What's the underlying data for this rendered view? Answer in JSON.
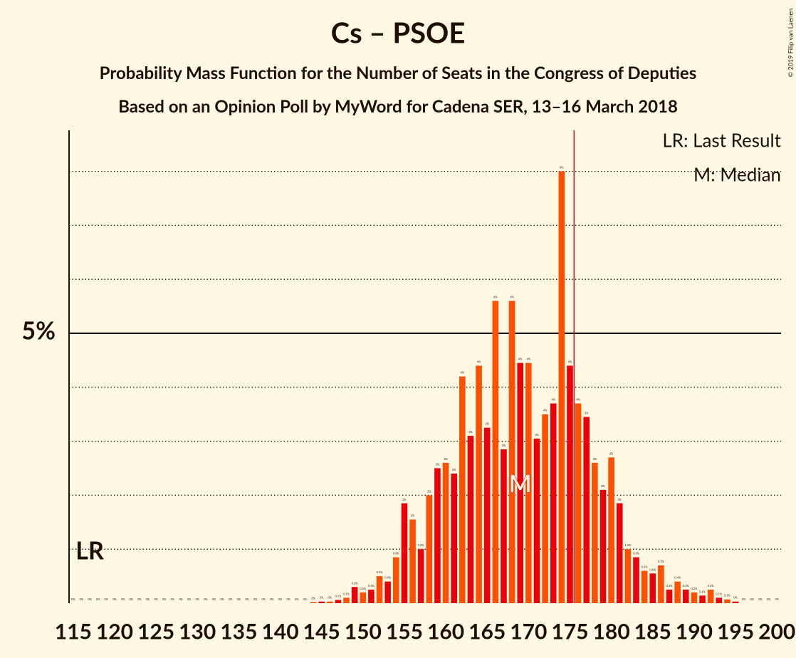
{
  "chart_data": {
    "type": "bar",
    "title": "Cs – PSOE",
    "subtitle": "Probability Mass Function for the Number of Seats in the Congress of Deputies",
    "subtitle2": "Based on an Opinion Poll by MyWord for Cadena SER, 13–16 March 2018",
    "copyright": "© 2019 Filip van Laenen",
    "legend": [
      "LR: Last Result",
      "M: Median"
    ],
    "x": [
      115,
      116,
      117,
      118,
      119,
      120,
      121,
      122,
      123,
      124,
      125,
      126,
      127,
      128,
      129,
      130,
      131,
      132,
      133,
      134,
      135,
      136,
      137,
      138,
      139,
      140,
      141,
      142,
      143,
      144,
      145,
      146,
      147,
      148,
      149,
      150,
      151,
      152,
      153,
      154,
      155,
      156,
      157,
      158,
      159,
      160,
      161,
      162,
      163,
      164,
      165,
      166,
      167,
      168,
      169,
      170,
      171,
      172,
      173,
      174,
      175,
      176,
      177,
      178,
      179,
      180,
      181,
      182,
      183,
      184,
      185,
      186,
      187,
      188,
      189,
      190,
      191,
      192,
      193,
      194,
      195,
      196,
      197,
      198,
      199,
      200
    ],
    "values": [
      0,
      0,
      0,
      0,
      0,
      0,
      0,
      0,
      0,
      0,
      0,
      0,
      0,
      0,
      0,
      0,
      0,
      0,
      0,
      0,
      0,
      0,
      0,
      0,
      0,
      0,
      0,
      0,
      0,
      0.02,
      0.03,
      0.03,
      0.06,
      0.1,
      0.3,
      0.2,
      0.25,
      0.5,
      0.4,
      0.85,
      1.85,
      1.55,
      1.0,
      2.0,
      2.5,
      2.6,
      2.4,
      4.2,
      3.1,
      4.4,
      3.25,
      5.6,
      2.85,
      5.6,
      4.45,
      4.45,
      3.05,
      3.5,
      3.7,
      8.0,
      4.4,
      3.7,
      3.45,
      2.6,
      2.1,
      2.7,
      1.85,
      1.0,
      0.85,
      0.6,
      0.55,
      0.7,
      0.25,
      0.4,
      0.25,
      0.2,
      0.14,
      0.25,
      0.1,
      0.07,
      0.03,
      0,
      0,
      0,
      0,
      0
    ],
    "value_labels": [
      "0%",
      "0%",
      "0%",
      "0%",
      "0%",
      "0%",
      "0%",
      "0%",
      "0%",
      "0%",
      "0%",
      "0%",
      "0%",
      "0%",
      "0%",
      "0%",
      "0%",
      "0%",
      "0%",
      "0%",
      "0%",
      "0%",
      "0%",
      "0%",
      "0%",
      "0%",
      "0%",
      "0%",
      "0%",
      "0%",
      "0%",
      "0%",
      "0.1%",
      "0.1%",
      "0.3%",
      "0.2%",
      "0.3%",
      "0.5%",
      "0.4%",
      "0.9%",
      "2%",
      "2%",
      "1.0%",
      "2%",
      "3%",
      "3%",
      "2%",
      "4%",
      "3%",
      "4%",
      "3%",
      "6%",
      "3%",
      "6%",
      "4%",
      "4%",
      "3%",
      "4%",
      "4%",
      "8%",
      "4%",
      "4%",
      "3%",
      "3%",
      "2%",
      "3%",
      "2%",
      "1.0%",
      "0.9%",
      "0.6%",
      "0.6%",
      "0.7%",
      "0.3%",
      "0.4%",
      "0.3%",
      "0.2%",
      "0.1%",
      "0.3%",
      "0.1%",
      "0.1%",
      "0%",
      "0%",
      "0%",
      "0%",
      "0%",
      "0%"
    ],
    "colors": [
      "#e8000b",
      "#ff5000"
    ],
    "xlim": [
      114.5,
      200.5
    ],
    "xticks": [
      115,
      120,
      125,
      130,
      135,
      140,
      145,
      150,
      155,
      160,
      165,
      170,
      175,
      180,
      185,
      190,
      195,
      200
    ],
    "ylim": [
      0,
      8.76
    ],
    "yticks": [
      {
        "value": 5,
        "label": "5%"
      }
    ],
    "ygrid": [
      1,
      2,
      3,
      4,
      6,
      7,
      8
    ],
    "median": 169,
    "median_label": "M",
    "last_result": 117,
    "last_result_label": "LR",
    "xline": 175.5,
    "xline_color": "#c8102e"
  }
}
